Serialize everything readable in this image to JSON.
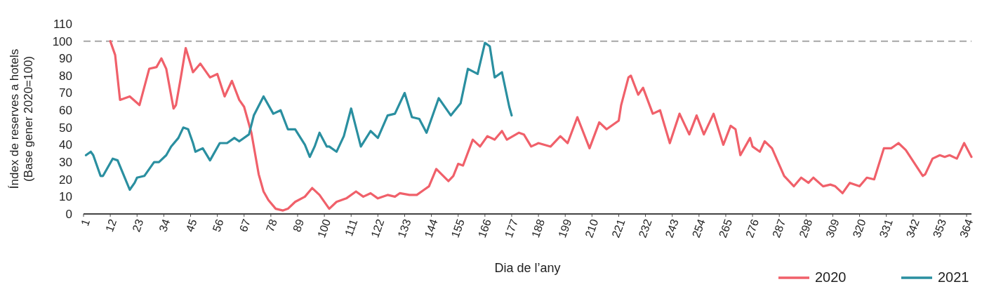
{
  "chart_data": {
    "type": "line",
    "xlabel": "Dia de l’any",
    "ylabel": "Índex de reserves a hotels\n(Base gener 2020=100)",
    "xlim": [
      1,
      366
    ],
    "ylim": [
      0,
      110
    ],
    "xticks": [
      1,
      12,
      23,
      34,
      45,
      56,
      67,
      78,
      89,
      100,
      111,
      122,
      133,
      144,
      155,
      166,
      177,
      188,
      199,
      210,
      221,
      232,
      243,
      254,
      265,
      276,
      287,
      298,
      309,
      320,
      331,
      342,
      353,
      364
    ],
    "yticks": [
      0,
      10,
      20,
      30,
      40,
      50,
      60,
      70,
      80,
      90,
      100,
      110
    ],
    "grid": false,
    "legend": "bottom right",
    "line_style": "solid",
    "marker": "none",
    "ref_lines": [
      {
        "axis": "y",
        "value": 100,
        "color": "#a6a6a6",
        "line_style": "dashed"
      }
    ],
    "series": [
      {
        "name": "2020",
        "color": "#f0606a",
        "x": [
          12,
          14,
          16,
          20,
          24,
          28,
          31,
          33,
          35,
          38,
          39,
          41,
          43,
          46,
          49,
          53,
          56,
          59,
          62,
          65,
          67,
          70,
          73,
          75,
          77,
          80,
          83,
          85,
          88,
          92,
          95,
          98,
          102,
          105,
          109,
          113,
          116,
          119,
          122,
          126,
          129,
          131,
          135,
          138,
          141,
          143,
          146,
          151,
          153,
          155,
          157,
          161,
          164,
          167,
          170,
          173,
          175,
          180,
          182,
          185,
          188,
          193,
          197,
          200,
          204,
          209,
          213,
          216,
          221,
          222,
          225,
          226,
          229,
          231,
          235,
          238,
          242,
          246,
          250,
          253,
          256,
          260,
          264,
          267,
          269,
          271,
          275,
          276,
          279,
          281,
          284,
          289,
          293,
          296,
          299,
          301,
          305,
          308,
          310,
          313,
          316,
          320,
          323,
          326,
          330,
          333,
          336,
          339,
          346,
          347,
          350,
          353,
          355,
          357,
          360,
          363,
          366
        ],
        "values": [
          100,
          92,
          66,
          68,
          63,
          84,
          85,
          90,
          84,
          61,
          63,
          79,
          96,
          82,
          87,
          79,
          81,
          68,
          77,
          66,
          62,
          47,
          23,
          13,
          8,
          3,
          2,
          3,
          7,
          10,
          15,
          11,
          3,
          7,
          9,
          13,
          10,
          12,
          9,
          11,
          10,
          12,
          11,
          11,
          14,
          16,
          26,
          19,
          22,
          29,
          28,
          43,
          39,
          45,
          43,
          48,
          43,
          47,
          46,
          39,
          41,
          39,
          45,
          41,
          56,
          38,
          53,
          49,
          54,
          63,
          79,
          80,
          69,
          73,
          58,
          60,
          41,
          58,
          46,
          57,
          46,
          58,
          40,
          51,
          49,
          34,
          44,
          39,
          36,
          42,
          38,
          22,
          16,
          21,
          18,
          21,
          16,
          17,
          16,
          12,
          18,
          16,
          21,
          20,
          38,
          38,
          41,
          37,
          22,
          23,
          32,
          34,
          33,
          34,
          32,
          41,
          33
        ]
      },
      {
        "name": "2021",
        "color": "#2a8fa0",
        "x": [
          2,
          4,
          5,
          8,
          9,
          13,
          15,
          20,
          22,
          23,
          26,
          30,
          32,
          35,
          37,
          40,
          42,
          44,
          46,
          47,
          50,
          53,
          57,
          60,
          63,
          65,
          69,
          71,
          75,
          79,
          82,
          85,
          88,
          92,
          94,
          96,
          98,
          101,
          102,
          105,
          108,
          111,
          115,
          119,
          122,
          126,
          129,
          133,
          136,
          139,
          142,
          147,
          152,
          156,
          159,
          163,
          166,
          168,
          170,
          173,
          176,
          177
        ],
        "values": [
          34,
          36,
          34,
          22,
          22,
          32,
          31,
          14,
          18,
          21,
          22,
          30,
          30,
          34,
          39,
          44,
          50,
          49,
          41,
          36,
          38,
          31,
          41,
          41,
          44,
          42,
          46,
          57,
          68,
          58,
          60,
          49,
          49,
          40,
          33,
          39,
          47,
          39,
          39,
          36,
          45,
          61,
          39,
          48,
          44,
          57,
          58,
          70,
          56,
          55,
          47,
          67,
          57,
          64,
          84,
          81,
          99,
          97,
          79,
          82,
          62,
          57
        ]
      }
    ]
  }
}
